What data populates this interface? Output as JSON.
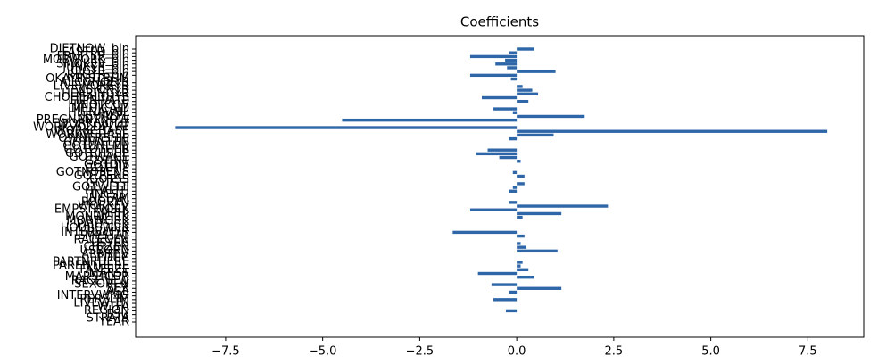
{
  "chart_data": {
    "type": "barh",
    "title": "Coefficients",
    "categories": [
      "YEAR",
      "STRATA",
      "PSU",
      "REGION",
      "WTFA",
      "LIVEWITH",
      "PERSLIM",
      "INTERVWMO",
      "AGE",
      "SEX",
      "SEXOREN",
      "RACENEW",
      "MARSTCUR",
      "MARST",
      "FAMSIZE",
      "PARENTHERE",
      "PARTNRHERE",
      "EDUC",
      "ARMFEV",
      "USBORN",
      "CITIZEN",
      "USYRS",
      "RACEGEN",
      "EMPSTAT",
      "INTERVWYR",
      "HOURSWRK",
      "PAIDSICK",
      "MORWORK",
      "MONWORK",
      "EMPHI",
      "EMPSTWORK",
      "WORKEV",
      "POORYN",
      "INCFAM",
      "INCSSI",
      "HEALTH",
      "GOTWELF",
      "GOTSSI",
      "GOTSS",
      "GOTPENS",
      "GOTNOPENS",
      "GOTHIP",
      "GOTDIV",
      "GOTINT",
      "GOTWAGE",
      "GOTCHSUP",
      "GOTOTHER",
      "GOTUNEMP",
      "GOTWELFN",
      "OWNERSHIP",
      "WORKVCHASE",
      "WORKCHASE",
      "WORKVOLDPLAT",
      "WORKIVOLD",
      "PREGNANTNOW",
      "USUALPL",
      "HIUNAVAIL",
      "MEDICAID",
      "HINOTCOV",
      "HIPRIVATE",
      "CHOHEALTHYS",
      "HEARINGYR",
      "VISIONYR",
      "LIVEWORKYR",
      "ALCOHOLYR",
      "OKAYINSTRUM",
      "REGYR_bin",
      "CIGYR_bin",
      "JUNKYR_bin",
      "SMOKEV_bin",
      "MOBWORK_bin",
      "FRUITYR_bin",
      "FASTFD_bin",
      "DIETNOW_bin"
    ],
    "values": [
      0,
      0,
      0,
      -0.28,
      0,
      0,
      -0.6,
      0,
      -0.2,
      1.15,
      -0.65,
      0,
      0.45,
      -1.0,
      0.3,
      0.1,
      0.15,
      0,
      0,
      1.05,
      0.25,
      0.1,
      0,
      0.2,
      -1.65,
      0,
      0,
      0,
      0.15,
      1.15,
      -1.2,
      2.35,
      -0.2,
      0,
      0,
      -0.2,
      -0.1,
      0.2,
      0,
      0.2,
      -0.1,
      0,
      0,
      0.1,
      -0.45,
      -1.05,
      -0.75,
      0,
      0,
      -0.2,
      0.95,
      8.0,
      -8.8,
      0,
      -4.5,
      1.75,
      -0.1,
      -0.6,
      0,
      0.3,
      -0.9,
      0.55,
      0.4,
      0.15,
      0,
      -0.15,
      -1.2,
      1.0,
      -0.25,
      -0.55,
      -0.3,
      -1.2,
      -0.2,
      0.45
    ],
    "color": "#2e66a8",
    "xlim": [
      -9.82,
      8.94
    ],
    "xticks": [
      {
        "value": -7.5,
        "label": "−7.5"
      },
      {
        "value": -5,
        "label": "−5.0"
      },
      {
        "value": -2.5,
        "label": "−2.5"
      },
      {
        "value": 0,
        "label": "0.0"
      },
      2.5,
      {
        "value": 5,
        "label": "5.0"
      },
      7.5
    ]
  }
}
